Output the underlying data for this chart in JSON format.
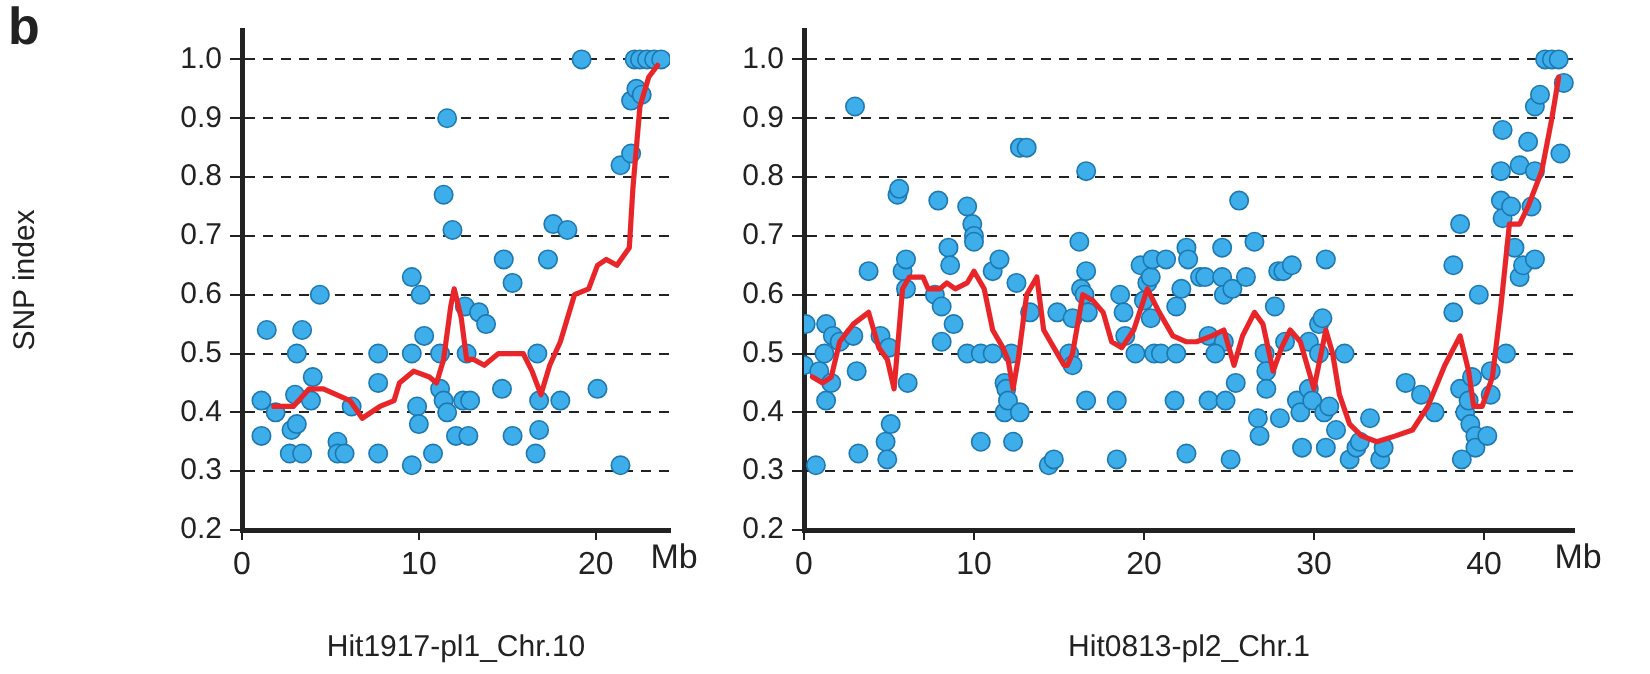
{
  "chart_data": [
    {
      "type": "scatter",
      "title": "b",
      "xlabel": "Hit1917-pl1_Chr.10",
      "ylabel": "SNP index",
      "annotations": [
        "Mb"
      ],
      "xlim": [
        0,
        24.2
      ],
      "xticks": [
        0,
        10,
        20
      ],
      "ylim": [
        0.2,
        1.05
      ],
      "yticks": [
        0.2,
        0.3,
        0.4,
        0.5,
        0.6,
        0.7,
        0.8,
        0.9,
        {
          "value": 1.0,
          "label": "1.0"
        }
      ],
      "grid": "y",
      "legend": false,
      "series": [
        {
          "type": "scatter",
          "marker": "circle",
          "color": "#3daee9",
          "x": [
            1.1,
            1.4,
            1.1,
            1.9,
            2.8,
            2.7,
            3.0,
            3.1,
            3.1,
            3.4,
            3.4,
            4.0,
            3.9,
            4.4,
            5.4,
            5.4,
            5.8,
            6.2,
            7.7,
            7.7,
            7.7,
            9.6,
            10.1,
            9.6,
            9.6,
            9.9,
            10.0,
            10.3,
            10.8,
            11.2,
            11.2,
            11.4,
            11.6,
            11.4,
            11.6,
            11.9,
            12.1,
            12.5,
            12.9,
            12.8,
            12.6,
            12.7,
            13.4,
            13.8,
            14.7,
            14.8,
            15.3,
            15.3,
            16.7,
            16.8,
            16.8,
            16.6,
            17.3,
            17.6,
            18.0,
            18.4,
            19.2,
            20.1,
            21.4,
            21.4,
            22.0,
            22.0,
            22.3,
            22.6,
            22.2,
            22.5,
            22.9,
            23.3,
            23.7
          ],
          "values": [
            0.42,
            0.54,
            0.36,
            0.4,
            0.37,
            0.33,
            0.43,
            0.38,
            0.5,
            0.54,
            0.33,
            0.46,
            0.42,
            0.6,
            0.35,
            0.33,
            0.33,
            0.41,
            0.5,
            0.45,
            0.33,
            0.63,
            0.6,
            0.5,
            0.31,
            0.41,
            0.38,
            0.53,
            0.33,
            0.5,
            0.44,
            0.42,
            0.4,
            0.77,
            0.9,
            0.71,
            0.36,
            0.42,
            0.42,
            0.36,
            0.58,
            0.5,
            0.57,
            0.55,
            0.44,
            0.66,
            0.62,
            0.36,
            0.5,
            0.42,
            0.37,
            0.33,
            0.66,
            0.72,
            0.42,
            0.71,
            1.0,
            0.44,
            0.82,
            0.31,
            0.84,
            0.93,
            0.95,
            0.94,
            1.0,
            1.0,
            1.0,
            1.0,
            1.0
          ]
        },
        {
          "type": "line",
          "marker": "none",
          "line_style": "solid",
          "color": "#e8262a",
          "x": [
            1.8,
            2.9,
            3.8,
            4.6,
            6.1,
            6.8,
            7.8,
            8.6,
            8.9,
            9.7,
            10.6,
            11.0,
            11.4,
            11.8,
            12.0,
            12.4,
            12.7,
            13.1,
            13.7,
            14.5,
            15.9,
            16.4,
            16.9,
            17.4,
            18.0,
            18.8,
            19.6,
            20.1,
            20.6,
            21.2,
            21.9,
            22.1,
            22.5,
            23.0,
            23.5
          ],
          "values": [
            0.41,
            0.41,
            0.44,
            0.44,
            0.42,
            0.39,
            0.41,
            0.42,
            0.45,
            0.47,
            0.46,
            0.45,
            0.49,
            0.58,
            0.61,
            0.56,
            0.49,
            0.49,
            0.48,
            0.5,
            0.5,
            0.47,
            0.43,
            0.48,
            0.52,
            0.6,
            0.61,
            0.65,
            0.66,
            0.65,
            0.68,
            0.78,
            0.92,
            0.97,
            0.99
          ]
        }
      ]
    },
    {
      "type": "scatter",
      "xlabel": "Hit0813-pl2_Chr.1",
      "annotations": [
        "Mb"
      ],
      "xlim": [
        0,
        45.3
      ],
      "xticks": [
        0,
        10,
        20,
        30,
        40
      ],
      "ylim": [
        0.2,
        1.05
      ],
      "yticks": [
        0.2,
        0.3,
        0.4,
        0.5,
        0.6,
        0.7,
        0.8,
        0.9,
        {
          "value": 1.0,
          "label": "1.0"
        }
      ],
      "grid": "y",
      "legend": false,
      "series": [
        {
          "type": "scatter",
          "marker": "circle",
          "color": "#3daee9",
          "x": [
            0,
            0.1,
            0.7,
            0.9,
            1.2,
            1.3,
            1.3,
            1.6,
            1.7,
            2.1,
            2.9,
            3.0,
            3.1,
            3.2,
            3.8,
            4.5,
            4.8,
            4.9,
            5.1,
            5.0,
            5.5,
            5.6,
            5.8,
            6.0,
            6.0,
            6.1,
            7.9,
            7.7,
            8.1,
            8.1,
            8.5,
            8.6,
            8.8,
            9.6,
            9.9,
            10.0,
            10.0,
            9.6,
            10.4,
            10.4,
            11.1,
            11.1,
            11.5,
            11.8,
            11.8,
            11.9,
            12.0,
            12.2,
            12.3,
            12.5,
            12.7,
            13.1,
            12.7,
            13.3,
            14.4,
            14.7,
            14.9,
            15.6,
            15.8,
            15.8,
            16.2,
            16.3,
            16.5,
            16.6,
            16.6,
            16.6,
            16.7,
            18.4,
            18.4,
            18.6,
            18.8,
            18.9,
            19.5,
            19.8,
            20.0,
            20.2,
            20.4,
            20.5,
            20.4,
            20.6,
            21.0,
            21.3,
            21.8,
            21.9,
            21.9,
            22.2,
            22.5,
            22.6,
            22.5,
            23.3,
            23.6,
            24.6,
            24.6,
            24.7,
            25.2,
            25.6,
            26.0,
            26.5,
            23.8,
            23.8,
            24.8,
            24.7,
            25.1,
            24.2,
            25.4,
            26.7,
            26.8,
            27.1,
            27.2,
            27.2,
            27.7,
            27.9,
            28.2,
            28.7,
            28.3,
            28.0,
            29.0,
            29.2,
            29.3,
            29.7,
            29.7,
            29.9,
            30.3,
            30.5,
            30.3,
            30.7,
            30.6,
            30.9,
            31.3,
            30.7,
            31.8,
            32.1,
            32.5,
            32.7,
            33.3,
            33.9,
            34.1,
            35.4,
            36.3,
            37.1,
            38.2,
            38.6,
            38.2,
            38.6,
            38.9,
            39.1,
            39.3,
            39.2,
            39.5,
            39.5,
            38.7,
            40.2,
            39.7,
            40.4,
            40.4,
            41.1,
            41.0,
            41.0,
            41.1,
            41.6,
            41.8,
            42.1,
            42.3,
            41.3,
            42.1,
            42.6,
            42.8,
            43.0,
            43.0,
            43.0,
            43.3,
            43.6,
            44.0,
            44.4,
            44.5,
            44.7
          ],
          "values": [
            0.48,
            0.55,
            0.31,
            0.47,
            0.5,
            0.55,
            0.42,
            0.45,
            0.53,
            0.52,
            0.53,
            0.92,
            0.47,
            0.33,
            0.64,
            0.53,
            0.35,
            0.32,
            0.38,
            0.51,
            0.77,
            0.78,
            0.64,
            0.66,
            0.61,
            0.45,
            0.76,
            0.6,
            0.58,
            0.52,
            0.68,
            0.65,
            0.55,
            0.75,
            0.72,
            0.7,
            0.69,
            0.5,
            0.5,
            0.35,
            0.5,
            0.64,
            0.66,
            0.4,
            0.45,
            0.44,
            0.42,
            0.5,
            0.35,
            0.62,
            0.85,
            0.85,
            0.4,
            0.57,
            0.31,
            0.32,
            0.57,
            0.5,
            0.48,
            0.56,
            0.69,
            0.61,
            0.6,
            0.64,
            0.81,
            0.42,
            0.57,
            0.32,
            0.42,
            0.6,
            0.57,
            0.53,
            0.5,
            0.65,
            0.59,
            0.62,
            0.63,
            0.66,
            0.56,
            0.5,
            0.5,
            0.66,
            0.42,
            0.5,
            0.58,
            0.61,
            0.68,
            0.66,
            0.33,
            0.63,
            0.63,
            0.63,
            0.68,
            0.6,
            0.61,
            0.76,
            0.63,
            0.69,
            0.53,
            0.42,
            0.42,
            0.52,
            0.32,
            0.5,
            0.45,
            0.39,
            0.36,
            0.5,
            0.47,
            0.44,
            0.58,
            0.64,
            0.64,
            0.65,
            0.52,
            0.39,
            0.42,
            0.4,
            0.34,
            0.52,
            0.44,
            0.42,
            0.55,
            0.56,
            0.5,
            0.66,
            0.4,
            0.41,
            0.37,
            0.34,
            0.5,
            0.32,
            0.34,
            0.35,
            0.39,
            0.32,
            0.34,
            0.45,
            0.43,
            0.4,
            0.65,
            0.72,
            0.57,
            0.44,
            0.4,
            0.42,
            0.46,
            0.38,
            0.36,
            0.34,
            0.32,
            0.36,
            0.6,
            0.47,
            0.43,
            0.88,
            0.81,
            0.76,
            0.73,
            0.75,
            0.68,
            0.63,
            0.65,
            0.5,
            0.82,
            0.86,
            0.75,
            0.81,
            0.66,
            0.92,
            0.94,
            1.0,
            1.0,
            1.0,
            0.84,
            0.96
          ]
        },
        {
          "type": "line",
          "marker": "none",
          "line_style": "solid",
          "color": "#e8262a",
          "x": [
            0.5,
            1.1,
            1.6,
            2.1,
            2.9,
            3.8,
            4.4,
            4.9,
            5.3,
            5.8,
            6.2,
            7.0,
            7.3,
            8.0,
            8.4,
            8.9,
            9.6,
            10.0,
            10.6,
            11.1,
            11.7,
            12.0,
            12.3,
            12.6,
            13.1,
            13.7,
            14.1,
            14.7,
            15.3,
            15.5,
            15.8,
            16.4,
            17.0,
            17.6,
            18.1,
            18.7,
            19.4,
            20.2,
            20.9,
            21.7,
            22.5,
            23.1,
            24.0,
            24.7,
            25.3,
            25.8,
            26.5,
            27.0,
            27.6,
            28.1,
            28.6,
            29.2,
            30.0,
            30.7,
            31.1,
            31.5,
            32.1,
            32.8,
            33.7,
            34.8,
            35.8,
            36.7,
            37.7,
            38.6,
            39.1,
            39.4,
            39.9,
            40.5,
            41.0,
            41.5,
            42.1,
            42.6,
            43.4,
            44.0,
            44.4
          ],
          "values": [
            0.46,
            0.45,
            0.46,
            0.52,
            0.55,
            0.57,
            0.51,
            0.49,
            0.44,
            0.61,
            0.63,
            0.63,
            0.61,
            0.61,
            0.62,
            0.61,
            0.62,
            0.64,
            0.61,
            0.54,
            0.51,
            0.49,
            0.44,
            0.49,
            0.6,
            0.63,
            0.54,
            0.51,
            0.48,
            0.48,
            0.5,
            0.6,
            0.59,
            0.57,
            0.52,
            0.51,
            0.54,
            0.61,
            0.57,
            0.53,
            0.52,
            0.52,
            0.53,
            0.54,
            0.48,
            0.53,
            0.57,
            0.55,
            0.47,
            0.51,
            0.54,
            0.52,
            0.44,
            0.54,
            0.5,
            0.43,
            0.38,
            0.36,
            0.35,
            0.36,
            0.37,
            0.41,
            0.48,
            0.53,
            0.47,
            0.41,
            0.41,
            0.46,
            0.58,
            0.72,
            0.72,
            0.75,
            0.81,
            0.9,
            0.97
          ]
        }
      ]
    }
  ]
}
